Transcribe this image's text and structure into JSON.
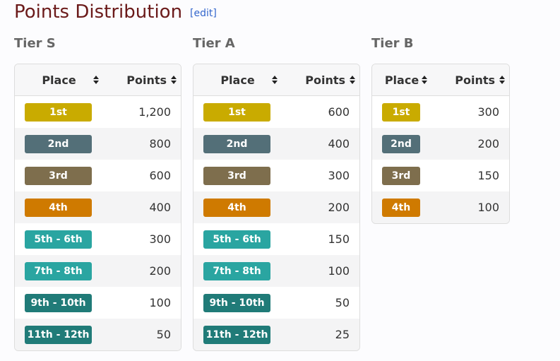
{
  "header": {
    "title": "Points Distribution",
    "edit": "[edit]"
  },
  "tiers": [
    {
      "name": "Tier S",
      "columns": [
        "Place",
        "Points"
      ],
      "rows": [
        {
          "place": "1st",
          "points": "1,200",
          "color": "#c9ab00"
        },
        {
          "place": "2nd",
          "points": "800",
          "color": "#536f78"
        },
        {
          "place": "3rd",
          "points": "600",
          "color": "#7e6e4d"
        },
        {
          "place": "4th",
          "points": "400",
          "color": "#cf7a00"
        },
        {
          "place": "5th - 6th",
          "points": "300",
          "color": "#2aa5a1"
        },
        {
          "place": "7th - 8th",
          "points": "200",
          "color": "#2aa5a1"
        },
        {
          "place": "9th - 10th",
          "points": "100",
          "color": "#207b78"
        },
        {
          "place": "11th - 12th",
          "points": "50",
          "color": "#207b78"
        }
      ]
    },
    {
      "name": "Tier A",
      "columns": [
        "Place",
        "Points"
      ],
      "rows": [
        {
          "place": "1st",
          "points": "600",
          "color": "#c9ab00"
        },
        {
          "place": "2nd",
          "points": "400",
          "color": "#536f78"
        },
        {
          "place": "3rd",
          "points": "300",
          "color": "#7e6e4d"
        },
        {
          "place": "4th",
          "points": "200",
          "color": "#cf7a00"
        },
        {
          "place": "5th - 6th",
          "points": "150",
          "color": "#2aa5a1"
        },
        {
          "place": "7th - 8th",
          "points": "100",
          "color": "#2aa5a1"
        },
        {
          "place": "9th - 10th",
          "points": "50",
          "color": "#207b78"
        },
        {
          "place": "11th - 12th",
          "points": "25",
          "color": "#207b78"
        }
      ]
    },
    {
      "name": "Tier B",
      "columns": [
        "Place",
        "Points"
      ],
      "rows": [
        {
          "place": "1st",
          "points": "300",
          "color": "#c9ab00"
        },
        {
          "place": "2nd",
          "points": "200",
          "color": "#536f78"
        },
        {
          "place": "3rd",
          "points": "150",
          "color": "#7e6e4d"
        },
        {
          "place": "4th",
          "points": "100",
          "color": "#cf7a00"
        }
      ]
    }
  ]
}
